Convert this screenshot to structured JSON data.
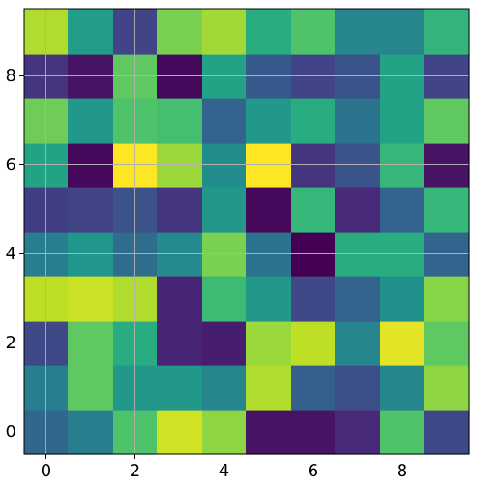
{
  "chart_data": {
    "type": "heatmap",
    "title": "",
    "xlabel": "",
    "ylabel": "",
    "colormap": "viridis",
    "grid": true,
    "origin": "lower",
    "xlim": [
      -0.5,
      9.5
    ],
    "ylim": [
      -0.5,
      9.5
    ],
    "xticks": [
      0,
      2,
      4,
      6,
      8
    ],
    "yticks": [
      0,
      2,
      4,
      6,
      8
    ],
    "xtick_labels": [
      "0",
      "2",
      "4",
      "6",
      "8"
    ],
    "ytick_labels": [
      "0",
      "2",
      "4",
      "6",
      "8"
    ],
    "value_range": [
      0,
      1
    ],
    "rows": [
      [
        0.33,
        0.42,
        0.72,
        0.93,
        0.83,
        0.05,
        0.05,
        0.12,
        0.72,
        0.22
      ],
      [
        0.42,
        0.75,
        0.53,
        0.53,
        0.45,
        0.88,
        0.3,
        0.24,
        0.45,
        0.83
      ],
      [
        0.22,
        0.75,
        0.62,
        0.1,
        0.08,
        0.85,
        0.9,
        0.45,
        0.96,
        0.75
      ],
      [
        0.9,
        0.92,
        0.88,
        0.1,
        0.68,
        0.53,
        0.22,
        0.32,
        0.5,
        0.82
      ],
      [
        0.42,
        0.52,
        0.35,
        0.47,
        0.8,
        0.38,
        0.0,
        0.62,
        0.62,
        0.32
      ],
      [
        0.18,
        0.2,
        0.25,
        0.15,
        0.53,
        0.02,
        0.66,
        0.12,
        0.32,
        0.66
      ],
      [
        0.58,
        0.02,
        1.0,
        0.85,
        0.48,
        1.0,
        0.15,
        0.26,
        0.66,
        0.05
      ],
      [
        0.78,
        0.53,
        0.72,
        0.7,
        0.32,
        0.53,
        0.62,
        0.38,
        0.58,
        0.75
      ],
      [
        0.15,
        0.05,
        0.75,
        0.02,
        0.58,
        0.28,
        0.2,
        0.26,
        0.58,
        0.2
      ],
      [
        0.88,
        0.55,
        0.2,
        0.8,
        0.86,
        0.62,
        0.72,
        0.45,
        0.45,
        0.65
      ]
    ]
  }
}
